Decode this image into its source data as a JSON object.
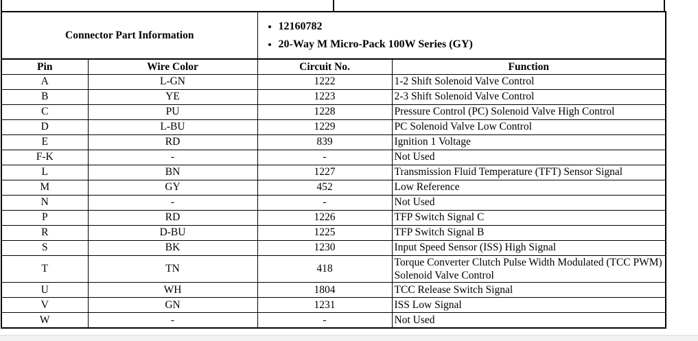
{
  "page": {
    "background_color": "#ffffff",
    "text_color": "#000000",
    "border_color": "#000000"
  },
  "table": {
    "connector_info_label": "Connector Part Information",
    "connector_details": [
      "12160782",
      "20-Way M Micro-Pack 100W Series (GY)"
    ],
    "columns": [
      "Pin",
      "Wire Color",
      "Circuit No.",
      "Function"
    ],
    "rows": [
      [
        "A",
        "L-GN",
        "1222",
        "1-2 Shift Solenoid Valve Control"
      ],
      [
        "B",
        "YE",
        "1223",
        "2-3 Shift Solenoid Valve Control"
      ],
      [
        "C",
        "PU",
        "1228",
        "Pressure Control (PC) Solenoid Valve High Control"
      ],
      [
        "D",
        "L-BU",
        "1229",
        "PC Solenoid Valve Low Control"
      ],
      [
        "E",
        "RD",
        "839",
        "Ignition 1 Voltage"
      ],
      [
        "F-K",
        "-",
        "-",
        "Not Used"
      ],
      [
        "L",
        "BN",
        "1227",
        "Transmission Fluid Temperature (TFT) Sensor Signal"
      ],
      [
        "M",
        "GY",
        "452",
        "Low Reference"
      ],
      [
        "N",
        "-",
        "-",
        "Not Used"
      ],
      [
        "P",
        "RD",
        "1226",
        "TFP Switch Signal C"
      ],
      [
        "R",
        "D-BU",
        "1225",
        "TFP Switch Signal B"
      ],
      [
        "S",
        "BK",
        "1230",
        "Input Speed Sensor (ISS) High Signal"
      ],
      [
        "T",
        "TN",
        "418",
        "Torque Converter Clutch Pulse Width Modulated (TCC PWM) Solenoid Valve Control"
      ],
      [
        "U",
        "WH",
        "1804",
        "TCC Release Switch Signal"
      ],
      [
        "V",
        "GN",
        "1231",
        "ISS Low Signal"
      ],
      [
        "W",
        "-",
        "-",
        "Not Used"
      ]
    ]
  },
  "scrollbar": {
    "track_color": "#f1f1f1",
    "track_border_color": "#dcdcdc"
  }
}
